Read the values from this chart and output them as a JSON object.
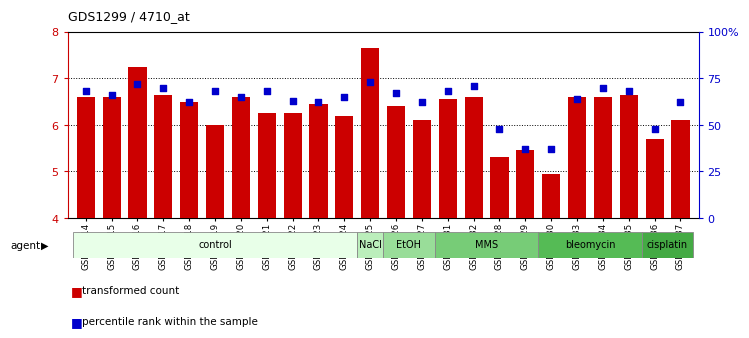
{
  "title": "GDS1299 / 4710_at",
  "samples": [
    "GSM40714",
    "GSM40715",
    "GSM40716",
    "GSM40717",
    "GSM40718",
    "GSM40719",
    "GSM40720",
    "GSM40721",
    "GSM40722",
    "GSM40723",
    "GSM40724",
    "GSM40725",
    "GSM40726",
    "GSM40727",
    "GSM40731",
    "GSM40732",
    "GSM40728",
    "GSM40729",
    "GSM40730",
    "GSM40733",
    "GSM40734",
    "GSM40735",
    "GSM40736",
    "GSM40737"
  ],
  "bar_values": [
    6.6,
    6.6,
    7.25,
    6.65,
    6.5,
    6.0,
    6.6,
    6.25,
    6.25,
    6.45,
    6.2,
    7.65,
    6.4,
    6.1,
    6.55,
    6.6,
    5.3,
    5.45,
    4.95,
    6.6,
    6.6,
    6.65,
    5.7,
    6.1
  ],
  "percentile_values": [
    68,
    66,
    72,
    70,
    62,
    68,
    65,
    68,
    63,
    62,
    65,
    73,
    67,
    62,
    68,
    71,
    48,
    37,
    37,
    64,
    70,
    68,
    48,
    62
  ],
  "bar_color": "#cc0000",
  "dot_color": "#0000cc",
  "ymin": 4,
  "ymax": 8,
  "yticks": [
    4,
    5,
    6,
    7,
    8
  ],
  "y2min": 0,
  "y2max": 100,
  "y2ticks": [
    0,
    25,
    50,
    75,
    100
  ],
  "y2ticklabels": [
    "0",
    "25",
    "50",
    "75",
    "100%"
  ],
  "group_defs": [
    {
      "label": "control",
      "start": 0,
      "end": 10,
      "color": "#e8ffe8"
    },
    {
      "label": "NaCl",
      "start": 11,
      "end": 11,
      "color": "#bbeebb"
    },
    {
      "label": "EtOH",
      "start": 12,
      "end": 13,
      "color": "#99dd99"
    },
    {
      "label": "MMS",
      "start": 14,
      "end": 17,
      "color": "#77cc77"
    },
    {
      "label": "bleomycin",
      "start": 18,
      "end": 21,
      "color": "#55bb55"
    },
    {
      "label": "cisplatin",
      "start": 22,
      "end": 23,
      "color": "#44aa44"
    }
  ],
  "legend_bar_label": "transformed count",
  "legend_dot_label": "percentile rank within the sample"
}
